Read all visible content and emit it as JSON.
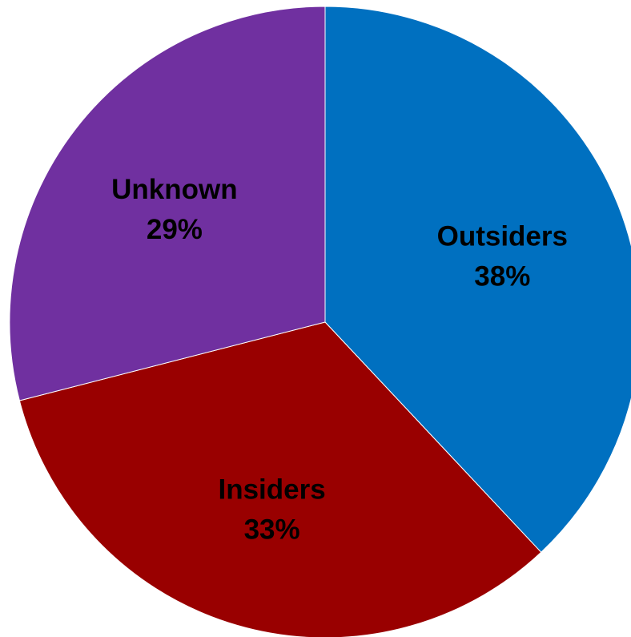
{
  "chart_data": {
    "type": "pie",
    "title": "",
    "start_angle_deg": 0,
    "direction": "clockwise",
    "slices": [
      {
        "name": "Outsiders",
        "value": 38,
        "value_label": "38%",
        "color": "#0070C0"
      },
      {
        "name": "Insiders",
        "value": 33,
        "value_label": "33%",
        "color": "#990000"
      },
      {
        "name": "Unknown",
        "value": 29,
        "value_label": "29%",
        "color": "#7030A0"
      }
    ]
  }
}
